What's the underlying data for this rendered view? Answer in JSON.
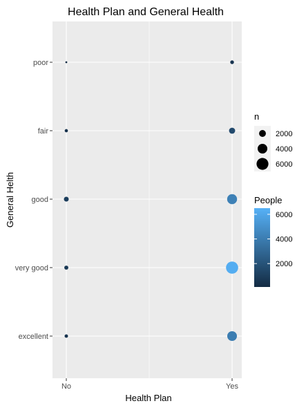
{
  "chart_data": {
    "type": "scatter",
    "title": "Health Plan and General Health",
    "xlabel": "Health Plan",
    "ylabel": "General Helth",
    "x_categories": [
      "No",
      "Yes"
    ],
    "y_categories": [
      "excellent",
      "very good",
      "good",
      "fair",
      "poor"
    ],
    "points": [
      {
        "x": "No",
        "y": "poor",
        "n": 150
      },
      {
        "x": "No",
        "y": "fair",
        "n": 450
      },
      {
        "x": "No",
        "y": "good",
        "n": 1000
      },
      {
        "x": "No",
        "y": "very good",
        "n": 700
      },
      {
        "x": "No",
        "y": "excellent",
        "n": 500
      },
      {
        "x": "Yes",
        "y": "poor",
        "n": 600
      },
      {
        "x": "Yes",
        "y": "fair",
        "n": 1600
      },
      {
        "x": "Yes",
        "y": "good",
        "n": 4200
      },
      {
        "x": "Yes",
        "y": "very good",
        "n": 6300
      },
      {
        "x": "Yes",
        "y": "excellent",
        "n": 4000
      }
    ],
    "size_legend": {
      "title": "n",
      "breaks": [
        2000,
        4000,
        6000
      ]
    },
    "color_legend": {
      "title": "People",
      "breaks": [
        2000,
        4000,
        6000
      ],
      "range": [
        100,
        6500
      ],
      "low_color": "#132b43",
      "high_color": "#56b1f7"
    },
    "panel_background": "#ebebeb",
    "grid_color": "#ffffff"
  }
}
